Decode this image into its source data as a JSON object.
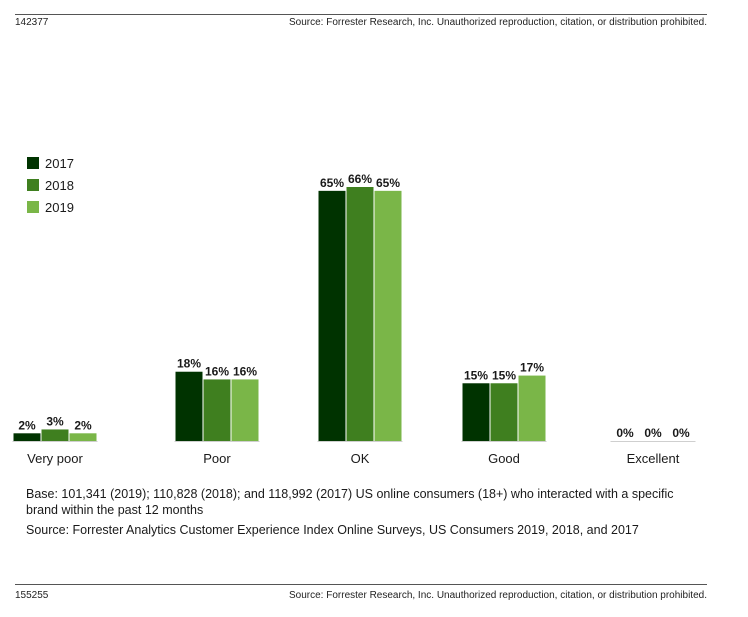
{
  "header": {
    "id": "142377",
    "source": "Source: Forrester Research, Inc. Unauthorized reproduction, citation, or distribution prohibited."
  },
  "footer": {
    "id": "155255",
    "source": "Source: Forrester Research, Inc. Unauthorized reproduction, citation, or distribution prohibited."
  },
  "notes": {
    "base": "Base: 101,341 (2019); 110,828 (2018); and 118,992 (2017) US online consumers (18+) who interacted with a specific brand within the past 12 months",
    "source": "Source: Forrester Analytics Customer Experience Index Online Surveys, US Consumers 2019, 2018, and 2017"
  },
  "colors": {
    "2017": "#003300",
    "2018": "#3f7f1f",
    "2019": "#7ab648"
  },
  "chart_data": {
    "type": "bar",
    "categories": [
      "Very poor",
      "Poor",
      "OK",
      "Good",
      "Excellent"
    ],
    "series": [
      {
        "name": "2017",
        "values": [
          2,
          18,
          65,
          15,
          0
        ]
      },
      {
        "name": "2018",
        "values": [
          3,
          16,
          66,
          15,
          0
        ]
      },
      {
        "name": "2019",
        "values": [
          2,
          16,
          65,
          17,
          0
        ]
      }
    ],
    "value_suffix": "%",
    "ylim": [
      0,
      66
    ],
    "legend": "top-left",
    "grid": false
  }
}
